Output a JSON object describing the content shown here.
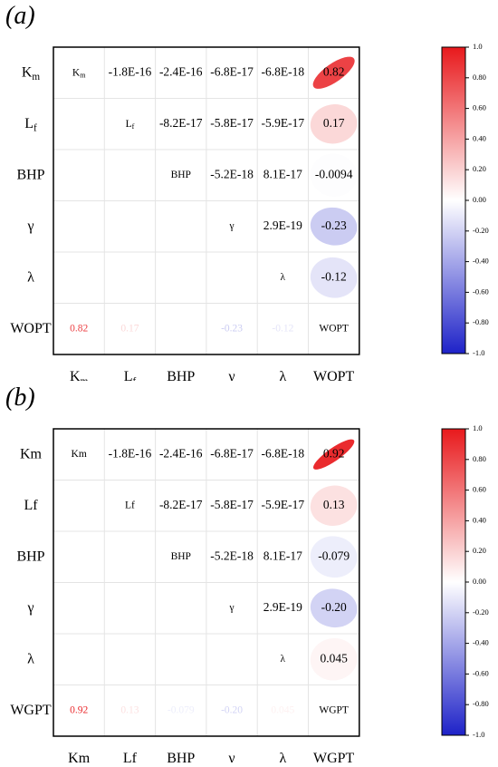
{
  "panels": [
    {
      "label": "(a)",
      "chart_data": {
        "type": "heatmap",
        "subtype": "correlation-ellipse-matrix-upper",
        "variables": [
          "K_m",
          "L_f",
          "BHP",
          "γ",
          "λ",
          "WOPT"
        ],
        "row_labels": [
          {
            "base": "K",
            "sub": "m"
          },
          {
            "base": "L",
            "sub": "f"
          },
          {
            "base": "BHP",
            "sub": ""
          },
          {
            "base": "γ",
            "sub": ""
          },
          {
            "base": "λ",
            "sub": ""
          },
          {
            "base": "WOPT",
            "sub": ""
          }
        ],
        "col_labels": [
          {
            "base": "K",
            "sub": "m"
          },
          {
            "base": "L",
            "sub": "f"
          },
          {
            "base": "BHP",
            "sub": ""
          },
          {
            "base": "γ",
            "sub": ""
          },
          {
            "base": "λ",
            "sub": ""
          },
          {
            "base": "WOPT",
            "sub": ""
          }
        ],
        "upper_cells": [
          {
            "row": 0,
            "col": 1,
            "text": "-1.8E-16",
            "value": -1.8e-16
          },
          {
            "row": 0,
            "col": 2,
            "text": "-2.4E-16",
            "value": -2.4e-16
          },
          {
            "row": 0,
            "col": 3,
            "text": "-6.8E-17",
            "value": -6.8e-17
          },
          {
            "row": 0,
            "col": 4,
            "text": "-6.8E-18",
            "value": -6.8e-18
          },
          {
            "row": 0,
            "col": 5,
            "text": "0.82",
            "value": 0.82
          },
          {
            "row": 1,
            "col": 2,
            "text": "-8.2E-17",
            "value": -8.2e-17
          },
          {
            "row": 1,
            "col": 3,
            "text": "-5.8E-17",
            "value": -5.8e-17
          },
          {
            "row": 1,
            "col": 4,
            "text": "-5.9E-17",
            "value": -5.9e-17
          },
          {
            "row": 1,
            "col": 5,
            "text": "0.17",
            "value": 0.17
          },
          {
            "row": 2,
            "col": 3,
            "text": "-5.2E-18",
            "value": -5.2e-18
          },
          {
            "row": 2,
            "col": 4,
            "text": "8.1E-17",
            "value": 8.1e-17
          },
          {
            "row": 2,
            "col": 5,
            "text": "-0.0094",
            "value": -0.0094
          },
          {
            "row": 3,
            "col": 4,
            "text": "2.9E-19",
            "value": 2.9e-19
          },
          {
            "row": 3,
            "col": 5,
            "text": "-0.23",
            "value": -0.23
          },
          {
            "row": 4,
            "col": 5,
            "text": "-0.12",
            "value": -0.12
          }
        ],
        "lower_cells": [
          {
            "row": 5,
            "col": 0,
            "text": "0.82",
            "value": 0.82
          },
          {
            "row": 5,
            "col": 1,
            "text": "0.17",
            "value": 0.17
          },
          {
            "row": 5,
            "col": 3,
            "text": "-0.23",
            "value": -0.23
          },
          {
            "row": 5,
            "col": 4,
            "text": "-0.12",
            "value": -0.12
          }
        ],
        "diagonal": [
          "K_m",
          "L_f",
          "BHP",
          "γ",
          "λ",
          "WOPT"
        ],
        "colorbar": {
          "ticks": [
            "1.0",
            "0.80",
            "0.60",
            "0.40",
            "0.20",
            "0.00",
            "-0.20",
            "-0.40",
            "-0.60",
            "-0.80",
            "-1.0"
          ],
          "range": [
            -1,
            1
          ],
          "colors": {
            "positive": "#e8191c",
            "zero": "#ffffff",
            "negative": "#1e22c8"
          }
        }
      }
    },
    {
      "label": "(b)",
      "chart_data": {
        "type": "heatmap",
        "subtype": "correlation-ellipse-matrix-upper",
        "variables": [
          "Km",
          "Lf",
          "BHP",
          "γ",
          "λ",
          "WGPT"
        ],
        "row_labels": [
          {
            "base": "Km",
            "sub": ""
          },
          {
            "base": "Lf",
            "sub": ""
          },
          {
            "base": "BHP",
            "sub": ""
          },
          {
            "base": "γ",
            "sub": ""
          },
          {
            "base": "λ",
            "sub": ""
          },
          {
            "base": "WGPT",
            "sub": ""
          }
        ],
        "col_labels": [
          {
            "base": "Km",
            "sub": ""
          },
          {
            "base": "Lf",
            "sub": ""
          },
          {
            "base": "BHP",
            "sub": ""
          },
          {
            "base": "γ",
            "sub": ""
          },
          {
            "base": "λ",
            "sub": ""
          },
          {
            "base": "WGPT",
            "sub": ""
          }
        ],
        "upper_cells": [
          {
            "row": 0,
            "col": 1,
            "text": "-1.8E-16",
            "value": -1.8e-16
          },
          {
            "row": 0,
            "col": 2,
            "text": "-2.4E-16",
            "value": -2.4e-16
          },
          {
            "row": 0,
            "col": 3,
            "text": "-6.8E-17",
            "value": -6.8e-17
          },
          {
            "row": 0,
            "col": 4,
            "text": "-6.8E-18",
            "value": -6.8e-18
          },
          {
            "row": 0,
            "col": 5,
            "text": "0.92",
            "value": 0.92
          },
          {
            "row": 1,
            "col": 2,
            "text": "-8.2E-17",
            "value": -8.2e-17
          },
          {
            "row": 1,
            "col": 3,
            "text": "-5.8E-17",
            "value": -5.8e-17
          },
          {
            "row": 1,
            "col": 4,
            "text": "-5.9E-17",
            "value": -5.9e-17
          },
          {
            "row": 1,
            "col": 5,
            "text": "0.13",
            "value": 0.13
          },
          {
            "row": 2,
            "col": 3,
            "text": "-5.2E-18",
            "value": -5.2e-18
          },
          {
            "row": 2,
            "col": 4,
            "text": "8.1E-17",
            "value": 8.1e-17
          },
          {
            "row": 2,
            "col": 5,
            "text": "-0.079",
            "value": -0.079
          },
          {
            "row": 3,
            "col": 4,
            "text": "2.9E-19",
            "value": 2.9e-19
          },
          {
            "row": 3,
            "col": 5,
            "text": "-0.20",
            "value": -0.2
          },
          {
            "row": 4,
            "col": 5,
            "text": "0.045",
            "value": 0.045
          }
        ],
        "lower_cells": [
          {
            "row": 5,
            "col": 0,
            "text": "0.92",
            "value": 0.92
          },
          {
            "row": 5,
            "col": 1,
            "text": "0.13",
            "value": 0.13
          },
          {
            "row": 5,
            "col": 2,
            "text": "-0.079",
            "value": -0.079
          },
          {
            "row": 5,
            "col": 3,
            "text": "-0.20",
            "value": -0.2
          },
          {
            "row": 5,
            "col": 4,
            "text": "0.045",
            "value": 0.045
          }
        ],
        "diagonal": [
          "Km",
          "Lf",
          "BHP",
          "γ",
          "λ",
          "WGPT"
        ],
        "colorbar": {
          "ticks": [
            "1.0",
            "0.80",
            "0.60",
            "0.40",
            "0.20",
            "0.00",
            "-0.20",
            "-0.40",
            "-0.60",
            "-0.80",
            "-1.0"
          ],
          "range": [
            -1,
            1
          ],
          "colors": {
            "positive": "#e8191c",
            "zero": "#ffffff",
            "negative": "#1e22c8"
          }
        }
      }
    }
  ]
}
